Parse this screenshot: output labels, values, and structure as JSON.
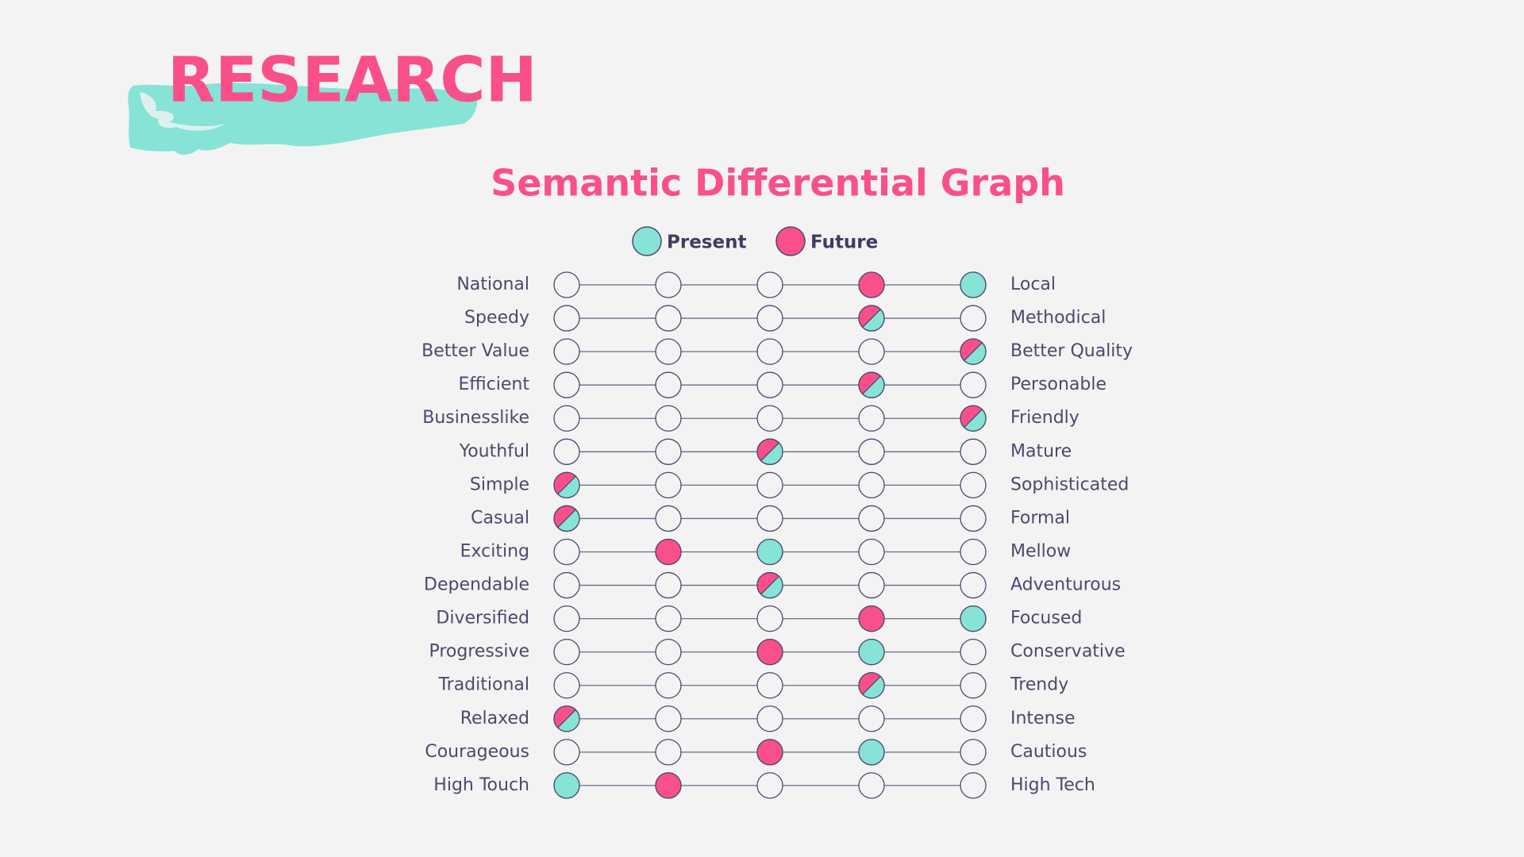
{
  "header": {
    "title": "RESEARCH"
  },
  "chart_data": {
    "type": "differential",
    "title": "Semantic Differential Graph",
    "categories": [
      "National",
      "Speedy",
      "Better Value",
      "Efficient",
      "Businesslike",
      "Youthful",
      "Simple",
      "Casual",
      "Exciting",
      "Dependable",
      "Diversified",
      "Progressive",
      "Traditional",
      "Relaxed",
      "Courageous",
      "High Touch"
    ],
    "right_categories": [
      "Local",
      "Methodical",
      "Better Quality",
      "Personable",
      "Friendly",
      "Mature",
      "Sophisticated",
      "Formal",
      "Mellow",
      "Adventurous",
      "Focused",
      "Conservative",
      "Trendy",
      "Intense",
      "Cautious",
      "High Tech"
    ],
    "xlim": [
      1,
      5
    ],
    "series": [
      {
        "name": "Present",
        "color": "#86e3d6",
        "values": [
          5,
          4,
          5,
          4,
          5,
          3,
          1,
          1,
          3,
          3,
          5,
          4,
          4,
          1,
          4,
          1
        ]
      },
      {
        "name": "Future",
        "color": "#f94f8a",
        "values": [
          4,
          4,
          5,
          4,
          5,
          3,
          1,
          1,
          2,
          3,
          4,
          3,
          4,
          1,
          3,
          2
        ]
      }
    ]
  }
}
